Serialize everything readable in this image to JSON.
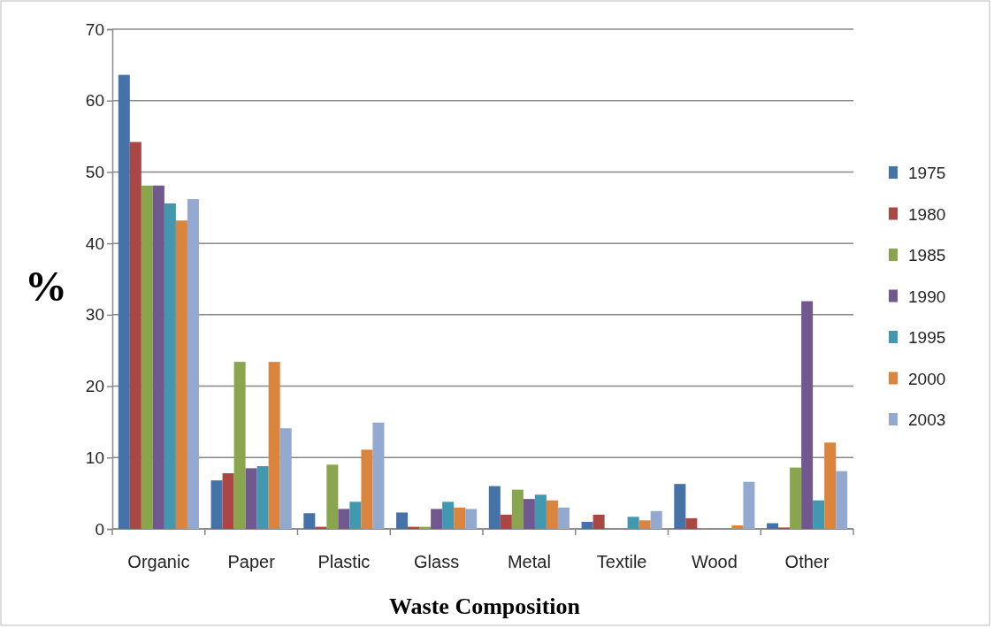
{
  "chart_data": {
    "type": "bar",
    "xlabel": "Waste Composition",
    "ylabel": "%",
    "categories": [
      "Organic",
      "Paper",
      "Plastic",
      "Glass",
      "Metal",
      "Textile",
      "Wood",
      "Other"
    ],
    "series": [
      {
        "name": "1975",
        "color": "#4572a7",
        "values": [
          63.6,
          6.8,
          2.2,
          2.3,
          6.0,
          1.0,
          6.3,
          0.8
        ]
      },
      {
        "name": "1980",
        "color": "#aa4643",
        "values": [
          54.2,
          7.8,
          0.3,
          0.3,
          2.0,
          2.0,
          1.5,
          0.2
        ]
      },
      {
        "name": "1985",
        "color": "#89a54e",
        "values": [
          48.1,
          23.4,
          9.0,
          0.3,
          5.5,
          0,
          0,
          8.6
        ]
      },
      {
        "name": "1990",
        "color": "#71588f",
        "values": [
          48.1,
          8.5,
          2.8,
          2.8,
          4.2,
          0,
          0,
          31.9
        ]
      },
      {
        "name": "1995",
        "color": "#4198af",
        "values": [
          45.6,
          8.8,
          3.8,
          3.8,
          4.8,
          1.7,
          0,
          4.0
        ]
      },
      {
        "name": "2000",
        "color": "#db843d",
        "values": [
          43.2,
          23.4,
          11.1,
          3.0,
          4.0,
          1.2,
          0.5,
          12.1
        ]
      },
      {
        "name": "2003",
        "color": "#93a9cf",
        "values": [
          46.2,
          14.1,
          14.9,
          2.8,
          3.0,
          2.5,
          6.6,
          8.1
        ]
      }
    ],
    "ylim": [
      0,
      70
    ],
    "yticks": [
      0,
      10,
      20,
      30,
      40,
      50,
      60,
      70
    ],
    "grid": "y",
    "legend": "right"
  }
}
